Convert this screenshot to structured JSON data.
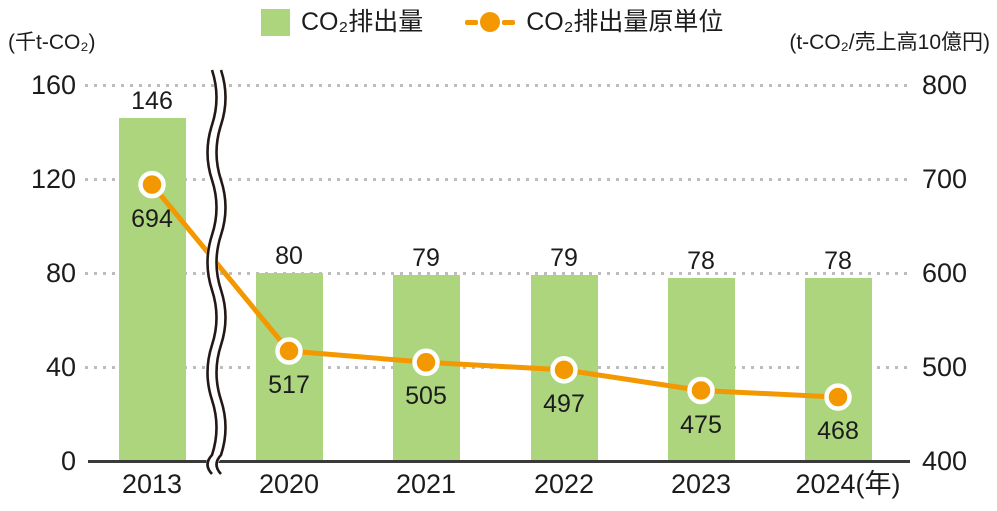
{
  "legend": {
    "bar_label": "CO₂排出量",
    "line_label": "CO₂排出量原単位"
  },
  "axes": {
    "left_unit": "(千t-CO₂)",
    "right_unit": "(t-CO₂/売上高10億円)",
    "left_ticks": [
      160,
      120,
      80,
      40,
      0
    ],
    "right_ticks": [
      800,
      700,
      600,
      500,
      400
    ],
    "year_suffix": "(年)"
  },
  "chart_data": {
    "type": "combo-bar-line",
    "categories": [
      "2013",
      "2020",
      "2021",
      "2022",
      "2023",
      "2024"
    ],
    "series": [
      {
        "name": "CO₂排出量",
        "type": "bar",
        "axis": "left",
        "unit": "千t-CO₂",
        "values": [
          146,
          80,
          79,
          79,
          78,
          78
        ]
      },
      {
        "name": "CO₂排出量原単位",
        "type": "line",
        "axis": "right",
        "unit": "t-CO₂/売上高10億円",
        "values": [
          694,
          517,
          505,
          497,
          475,
          468
        ]
      }
    ],
    "left_ylim": [
      0,
      160
    ],
    "right_ylim": [
      400,
      800
    ],
    "grid": "dotted horizontal",
    "legend_position": "top",
    "axis_break": {
      "axis": "x",
      "between": [
        "2013",
        "2020"
      ]
    }
  },
  "colors": {
    "bar": "#acd57e",
    "line": "#f39800",
    "marker_ring": "#ffffff",
    "grid": "#bdbdbd",
    "axis": "#3a3a3a",
    "text": "#1c1c1c"
  }
}
